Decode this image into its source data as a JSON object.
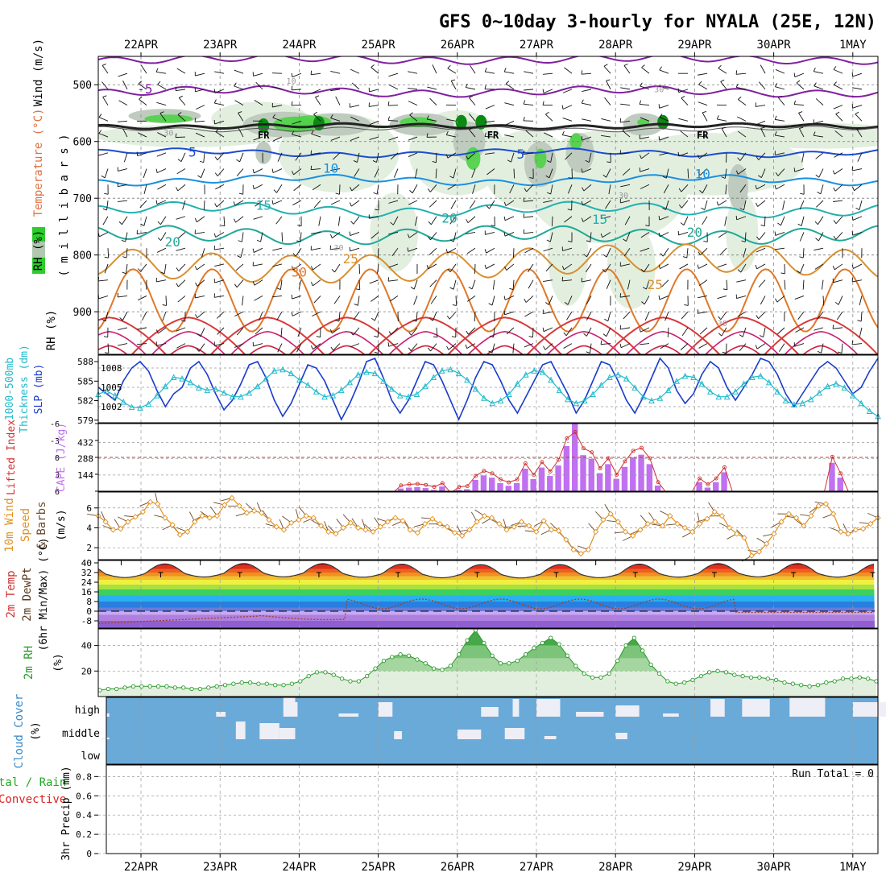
{
  "title": "GFS 0~10day 3-hourly for NYALA (25E, 12N)",
  "dates": [
    "22APR",
    "23APR",
    "24APR",
    "25APR",
    "26APR",
    "27APR",
    "28APR",
    "29APR",
    "30APR",
    "1MAY"
  ],
  "colors": {
    "temp": "#e07040",
    "rh_green": "#33cc33",
    "wind": "#6a4bbf",
    "millibars": "#222222",
    "slp": "#1a3ccc",
    "thickness": "#22bbcc",
    "cape": "#c070f0",
    "li": "#d03030",
    "wind10": "#e09020",
    "cloud": "#6aaad8",
    "cloud_gap": "#eeeef6",
    "rh2m": "#2a9a2a",
    "precip_total": "#22aa22",
    "precip_conv": "#dd2222",
    "grid": "#999999"
  },
  "chart_data": [
    {
      "type": "contour",
      "name": "upper-air cross section",
      "labels": {
        "wind": "Wind (m/s)",
        "temp": "Temperature (°C)",
        "rh": "RH (%)",
        "millibars": "( m i l l i b a r s )"
      },
      "y_ticks": [
        "500",
        "600",
        "700",
        "800",
        "900"
      ],
      "ylim": [
        450,
        975
      ],
      "freezing_label": "FR",
      "isotherm_labels": [
        {
          "text": "-5",
          "color": "#8020a0",
          "day": 0.05,
          "p": 515
        },
        {
          "text": "5",
          "color": "#1c4ccc",
          "day": 0.65,
          "p": 627
        },
        {
          "text": "5",
          "color": "#1c4ccc",
          "day": 4.8,
          "p": 630
        },
        {
          "text": "10",
          "color": "#1a90e0",
          "day": 2.4,
          "p": 655
        },
        {
          "text": "10",
          "color": "#1a90e0",
          "day": 7.1,
          "p": 665
        },
        {
          "text": "15",
          "color": "#22b0b0",
          "day": 1.55,
          "p": 720
        },
        {
          "text": "15",
          "color": "#22b0b0",
          "day": 5.8,
          "p": 745
        },
        {
          "text": "20",
          "color": "#20a898",
          "day": 0.4,
          "p": 785
        },
        {
          "text": "20",
          "color": "#20a898",
          "day": 3.9,
          "p": 743
        },
        {
          "text": "20",
          "color": "#20a898",
          "day": 7.0,
          "p": 768
        },
        {
          "text": "25",
          "color": "#d89030",
          "day": 2.65,
          "p": 815
        },
        {
          "text": "25",
          "color": "#d89030",
          "day": 6.5,
          "p": 860
        },
        {
          "text": "30",
          "color": "#e07828",
          "day": 2.0,
          "p": 838
        }
      ],
      "rh_labels": [
        {
          "text": "10",
          "day": 1.9,
          "p": 498
        },
        {
          "text": "30",
          "day": 6.55,
          "p": 513
        },
        {
          "text": "30",
          "day": 6.1,
          "p": 700
        },
        {
          "text": "30",
          "day": 2.5,
          "p": 792
        },
        {
          "text": "30",
          "day": 7.35,
          "p": 925
        },
        {
          "text": "30",
          "day": 0.35,
          "p": 590
        }
      ]
    },
    {
      "type": "line",
      "name": "SLP and thickness",
      "labels": {
        "slp": "SLP (mb)",
        "thickness": "1000-500mb Thickness (dm)"
      },
      "thickness_ticks": [
        "588",
        "585",
        "582",
        "579"
      ],
      "slp_ticks": [
        "1008",
        "1005",
        "1002"
      ],
      "slp_ylim": [
        999.5,
        1010
      ],
      "thickness_ylim": [
        578.6,
        589
      ],
      "series": [
        {
          "name": "SLP",
          "values": [
            1005.0,
            1004.0,
            1003.0,
            1006.0,
            1008.0,
            1009.0,
            1007.5,
            1004.5,
            1002.0,
            1004.0,
            1005.0,
            1008.0,
            1009.0,
            1007.0,
            1004.0,
            1001.5,
            1003.0,
            1005.5,
            1008.5,
            1009.0,
            1006.5,
            1003.0,
            1000.5,
            1002.5,
            1005.5,
            1008.5,
            1008.0,
            1006.0,
            1003.0,
            1000.0,
            1002.5,
            1005.5,
            1009.0,
            1009.5,
            1006.5,
            1003.0,
            1001.0,
            1003.0,
            1006.0,
            1009.0,
            1008.5,
            1006.0,
            1003.0,
            1000.0,
            1003.0,
            1006.5,
            1009.0,
            1008.5,
            1006.0,
            1003.0,
            1001.0,
            1003.5,
            1006.0,
            1008.5,
            1009.0,
            1006.5,
            1004.0,
            1001.0,
            1003.0,
            1006.0,
            1009.0,
            1008.5,
            1006.0,
            1003.0,
            1001.0,
            1003.5,
            1006.5,
            1009.5,
            1008.0,
            1004.5,
            1002.5,
            1004.0,
            1007.0,
            1009.0,
            1008.0,
            1005.0,
            1003.0,
            1005.0,
            1007.0,
            1009.5,
            1009.0,
            1007.0,
            1004.0,
            1002.0,
            1004.0,
            1006.0,
            1008.0,
            1009.0,
            1008.0,
            1006.0,
            1004.0,
            1005.0,
            1007.5,
            1009.5
          ]
        },
        {
          "name": "Thickness",
          "values": [
            583.0,
            583.5,
            582.8,
            581.8,
            581.0,
            580.9,
            581.5,
            582.8,
            584.2,
            585.6,
            585.4,
            584.8,
            584.0,
            583.6,
            583.8,
            583.2,
            582.6,
            582.6,
            583.2,
            584.2,
            585.4,
            586.6,
            586.8,
            586.2,
            585.2,
            584.4,
            583.4,
            582.6,
            582.8,
            583.6,
            584.8,
            586.0,
            586.4,
            586.2,
            585.0,
            583.8,
            582.8,
            582.6,
            583.0,
            584.2,
            585.6,
            586.6,
            586.8,
            586.2,
            585.2,
            583.8,
            582.4,
            581.6,
            582.0,
            583.0,
            584.6,
            586.0,
            586.6,
            586.4,
            585.2,
            583.6,
            582.2,
            581.6,
            582.0,
            583.0,
            584.4,
            585.6,
            586.0,
            585.4,
            584.0,
            582.6,
            582.0,
            582.4,
            583.6,
            585.0,
            585.8,
            585.6,
            584.6,
            583.4,
            582.6,
            582.6,
            583.4,
            584.6,
            585.6,
            585.8,
            584.8,
            583.4,
            582.0,
            581.4,
            581.6,
            582.2,
            583.2,
            584.2,
            584.6,
            584.0,
            582.8,
            581.6,
            580.4,
            579.6
          ]
        }
      ]
    },
    {
      "type": "bar",
      "name": "CAPE and lifted index",
      "labels": {
        "cape": "CAPE (J/kg)",
        "li": "Lifted Index"
      },
      "li_ticks": [
        "-6",
        "-3",
        "0",
        "3",
        "6"
      ],
      "cape_ticks": [
        "432",
        "288",
        "144"
      ],
      "cape_ylim": [
        0,
        600
      ],
      "li_ylim": [
        -6,
        6
      ],
      "cape_values": [
        0,
        0,
        0,
        0,
        0,
        0,
        0,
        0,
        0,
        0,
        0,
        0,
        0,
        0,
        0,
        0,
        0,
        0,
        0,
        0,
        0,
        0,
        0,
        0,
        0,
        0,
        0,
        0,
        0,
        0,
        0,
        0,
        0,
        0,
        0,
        0,
        24,
        32,
        36,
        28,
        12,
        42,
        0,
        12,
        18,
        100,
        140,
        120,
        72,
        48,
        72,
        200,
        108,
        210,
        135,
        228,
        400,
        660,
        320,
        288,
        160,
        240,
        110,
        216,
        300,
        324,
        240,
        50,
        0,
        0,
        0,
        0,
        80,
        32,
        80,
        168,
        0,
        0,
        0,
        0,
        0,
        0,
        0,
        0,
        0,
        0,
        0,
        0,
        252,
        120,
        0,
        0,
        0,
        0
      ]
    },
    {
      "type": "line",
      "name": "10m wind speed and barbs",
      "labels": {
        "title": "10m Wind Speed & Barbs (m/s)"
      },
      "y_ticks": [
        "6",
        "4",
        "2"
      ],
      "ylim": [
        0.8,
        7.6
      ],
      "values": [
        5.2,
        4.6,
        3.8,
        3.9,
        4.6,
        5.1,
        5.6,
        6.6,
        6.4,
        5.0,
        4.3,
        3.3,
        3.6,
        4.6,
        5.2,
        5.0,
        5.2,
        6.3,
        7.0,
        6.2,
        5.5,
        5.7,
        5.5,
        4.8,
        4.1,
        3.8,
        4.5,
        4.8,
        5.2,
        5.0,
        4.2,
        3.6,
        3.4,
        4.0,
        4.5,
        4.0,
        3.8,
        3.6,
        4.1,
        4.6,
        5.0,
        4.7,
        3.8,
        3.5,
        4.4,
        4.9,
        4.4,
        4.1,
        3.5,
        3.2,
        3.8,
        4.6,
        5.2,
        5.0,
        4.4,
        3.8,
        4.1,
        4.6,
        4.2,
        3.6,
        4.7,
        3.8,
        3.7,
        2.8,
        1.8,
        1.4,
        1.8,
        3.6,
        4.8,
        5.4,
        4.6,
        3.6,
        3.2,
        3.8,
        4.4,
        4.6,
        4.2,
        5.2,
        4.4,
        4.0,
        3.6,
        4.4,
        4.9,
        5.6,
        5.2,
        4.0,
        3.4,
        3.0,
        1.2,
        1.6,
        2.4,
        3.4,
        4.6,
        5.4,
        5.0,
        4.2,
        5.2,
        6.2,
        6.4,
        5.4,
        3.6,
        3.4,
        3.8,
        3.9,
        4.4,
        5.0
      ]
    },
    {
      "type": "area",
      "name": "2m temperature and dew point",
      "labels": {
        "temp": "2m Temp",
        "dewpt": "2m DewPt",
        "minmax": "(6hr Min/Max) (°C)"
      },
      "y_ticks": [
        "40",
        "32",
        "24",
        "16",
        "8",
        "0",
        "-8"
      ],
      "ylim": [
        -14,
        42
      ]
    },
    {
      "type": "area",
      "name": "2m relative humidity",
      "labels": {
        "rh": "2m RH",
        "unit": "(%)"
      },
      "y_ticks": [
        "40",
        "20"
      ],
      "ylim": [
        0,
        53
      ],
      "values": [
        5,
        6,
        6,
        7,
        8,
        8,
        8,
        8,
        8,
        7,
        7,
        6,
        6,
        7,
        8,
        9,
        10,
        11,
        11,
        10,
        10,
        9,
        9,
        10,
        12,
        16,
        19,
        19,
        17,
        14,
        12,
        12,
        16,
        22,
        28,
        31,
        33,
        32,
        29,
        26,
        22,
        21,
        24,
        33,
        44,
        52,
        42,
        32,
        26,
        26,
        28,
        33,
        38,
        42,
        46,
        41,
        32,
        24,
        18,
        15,
        15,
        18,
        28,
        40,
        46,
        36,
        25,
        18,
        12,
        10,
        11,
        13,
        16,
        19,
        20,
        19,
        17,
        16,
        15,
        15,
        14,
        13,
        11,
        10,
        9,
        8,
        9,
        11,
        12,
        14,
        14,
        15,
        14,
        12
      ]
    },
    {
      "type": "bar",
      "name": "cloud cover",
      "labels": {
        "title": "Cloud Cover (%)",
        "high": "high",
        "middle": "middle",
        "low": "low"
      }
    },
    {
      "type": "bar",
      "name": "3hr precipitation",
      "labels": {
        "title": "3hr Precip (mm)",
        "total": "tal / Rain",
        "convective": "Convective",
        "run_total": "Run Total = 0"
      },
      "y_ticks": [
        "0.8",
        "0.6",
        "0.4",
        "0.2",
        "0"
      ],
      "ylim": [
        0,
        0.92
      ],
      "values": []
    }
  ]
}
